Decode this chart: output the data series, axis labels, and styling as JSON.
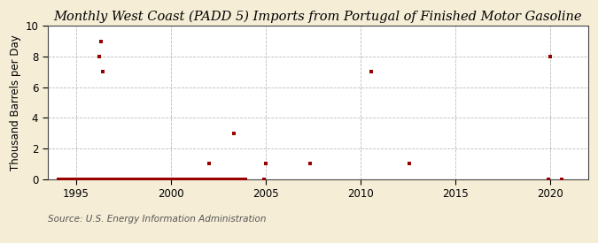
{
  "title": "Monthly West Coast (PADD 5) Imports from Portugal of Finished Motor Gasoline",
  "ylabel": "Thousand Barrels per Day",
  "source": "Source: U.S. Energy Information Administration",
  "xlim": [
    1993.5,
    2022.0
  ],
  "ylim": [
    0,
    10
  ],
  "yticks": [
    0,
    2,
    4,
    6,
    8,
    10
  ],
  "xticks": [
    1995,
    2000,
    2005,
    2010,
    2015,
    2020
  ],
  "data_x": [
    1994.083,
    1994.167,
    1994.25,
    1994.333,
    1994.417,
    1994.5,
    1994.583,
    1994.667,
    1994.75,
    1994.833,
    1994.917,
    1995.0,
    1995.083,
    1995.167,
    1995.25,
    1995.333,
    1995.417,
    1995.5,
    1995.583,
    1995.667,
    1995.75,
    1995.833,
    1995.917,
    1996.0,
    1996.083,
    1996.167,
    1996.25,
    1996.333,
    1996.417,
    1996.5,
    1996.583,
    1996.667,
    1996.75,
    1996.833,
    1996.917,
    1997.0,
    1997.083,
    1997.167,
    1997.25,
    1997.333,
    1997.417,
    1997.5,
    1997.583,
    1997.667,
    1997.75,
    1997.833,
    1997.917,
    1998.0,
    1998.083,
    1998.167,
    1998.25,
    1998.333,
    1998.417,
    1998.5,
    1998.583,
    1998.667,
    1998.75,
    1998.833,
    1998.917,
    1999.0,
    1999.083,
    1999.167,
    1999.25,
    1999.333,
    1999.417,
    1999.5,
    1999.583,
    1999.667,
    1999.75,
    1999.833,
    1999.917,
    2000.0,
    2000.083,
    2000.167,
    2000.25,
    2000.333,
    2000.417,
    2000.5,
    2000.583,
    2000.667,
    2000.75,
    2000.833,
    2000.917,
    2001.0,
    2001.083,
    2001.167,
    2001.25,
    2001.333,
    2001.417,
    2001.5,
    2001.583,
    2001.667,
    2001.75,
    2001.833,
    2001.917,
    2002.0,
    2002.083,
    2002.167,
    2002.25,
    2002.333,
    2002.417,
    2002.5,
    2002.583,
    2002.667,
    2002.75,
    2002.833,
    2002.917,
    2003.0,
    2003.083,
    2003.167,
    2003.25,
    2003.333,
    2003.417,
    2003.5,
    2003.583,
    2003.667,
    2003.75,
    2003.833,
    2003.917,
    1996.25,
    1996.333,
    1996.417,
    2002.0,
    2003.333,
    2004.917,
    2005.0,
    2007.333,
    2010.583,
    2012.583,
    2019.917,
    2020.0,
    2020.583
  ],
  "data_y": [
    0,
    0,
    0,
    0,
    0,
    0,
    0,
    0,
    0,
    0,
    0,
    0,
    0,
    0,
    0,
    0,
    0,
    0,
    0,
    0,
    0,
    0,
    0,
    0,
    0,
    0,
    0,
    0,
    0,
    0,
    0,
    0,
    0,
    0,
    0,
    0,
    0,
    0,
    0,
    0,
    0,
    0,
    0,
    0,
    0,
    0,
    0,
    0,
    0,
    0,
    0,
    0,
    0,
    0,
    0,
    0,
    0,
    0,
    0,
    0,
    0,
    0,
    0,
    0,
    0,
    0,
    0,
    0,
    0,
    0,
    0,
    0,
    0,
    0,
    0,
    0,
    0,
    0,
    0,
    0,
    0,
    0,
    0,
    0,
    0,
    0,
    0,
    0,
    0,
    0,
    0,
    0,
    0,
    0,
    0,
    0,
    0,
    0,
    0,
    0,
    0,
    0,
    0,
    0,
    0,
    0,
    0,
    0,
    0,
    0,
    0,
    0,
    0,
    0,
    0,
    0,
    0,
    0,
    0,
    8,
    9,
    7,
    1,
    3,
    0,
    1,
    1,
    7,
    1,
    0,
    8,
    0
  ],
  "marker_color": "#990000",
  "marker_size": 3.5,
  "fig_bg_color": "#F5EDD6",
  "plot_bg_color": "#FFFFFF",
  "grid_color": "#BBBBBB",
  "title_fontsize": 10.5,
  "label_fontsize": 8.5,
  "tick_fontsize": 8.5,
  "source_fontsize": 7.5
}
